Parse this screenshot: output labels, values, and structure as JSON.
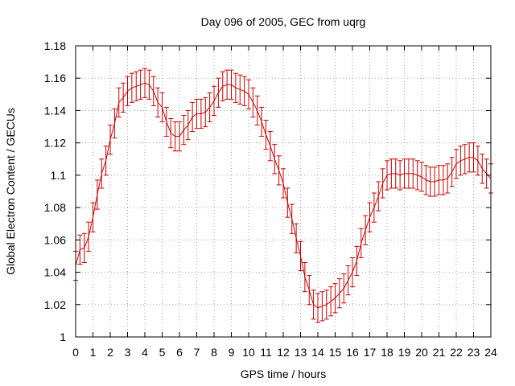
{
  "chart_data": {
    "type": "line",
    "title": "Day 096 of 2005, GEC from uqrg",
    "xlabel": "GPS time / hours",
    "ylabel": "Global Electron Content / GECUs",
    "xlim": [
      0,
      24
    ],
    "ylim": [
      1.0,
      1.18
    ],
    "grid": true,
    "x_ticks": [
      "0",
      "1",
      "2",
      "3",
      "4",
      "5",
      "6",
      "7",
      "8",
      "9",
      "10",
      "11",
      "12",
      "13",
      "14",
      "15",
      "16",
      "17",
      "18",
      "19",
      "20",
      "21",
      "22",
      "23",
      "24"
    ],
    "y_ticks": [
      "1",
      "1.02",
      "1.04",
      "1.06",
      "1.08",
      "1.1",
      "1.12",
      "1.14",
      "1.16",
      "1.18"
    ],
    "series": [
      {
        "color": "#cc0000",
        "x": [
          0,
          0.25,
          0.5,
          0.75,
          1,
          1.25,
          1.5,
          1.75,
          2,
          2.25,
          2.5,
          2.75,
          3,
          3.25,
          3.5,
          3.75,
          4,
          4.25,
          4.5,
          4.75,
          5,
          5.25,
          5.5,
          5.75,
          6,
          6.25,
          6.5,
          6.75,
          7,
          7.25,
          7.5,
          7.75,
          8,
          8.25,
          8.5,
          8.75,
          9,
          9.25,
          9.5,
          9.75,
          10,
          10.25,
          10.5,
          10.75,
          11,
          11.25,
          11.5,
          11.75,
          12,
          12.25,
          12.5,
          12.75,
          13,
          13.25,
          13.5,
          13.75,
          14,
          14.25,
          14.5,
          14.75,
          15,
          15.25,
          15.5,
          15.75,
          16,
          16.25,
          16.5,
          16.75,
          17,
          17.25,
          17.5,
          17.75,
          18,
          18.25,
          18.5,
          18.75,
          19,
          19.25,
          19.5,
          19.75,
          20,
          20.25,
          20.5,
          20.75,
          21,
          21.25,
          21.5,
          21.75,
          22,
          22.25,
          22.5,
          22.75,
          23,
          23.25,
          23.5,
          23.75,
          24
        ],
        "y": [
          1.044,
          1.054,
          1.055,
          1.062,
          1.074,
          1.088,
          1.101,
          1.109,
          1.122,
          1.132,
          1.145,
          1.148,
          1.152,
          1.154,
          1.155,
          1.156,
          1.157,
          1.156,
          1.152,
          1.145,
          1.142,
          1.133,
          1.126,
          1.124,
          1.124,
          1.128,
          1.131,
          1.136,
          1.138,
          1.138,
          1.139,
          1.142,
          1.146,
          1.151,
          1.155,
          1.156,
          1.156,
          1.154,
          1.153,
          1.152,
          1.15,
          1.145,
          1.14,
          1.133,
          1.125,
          1.118,
          1.11,
          1.103,
          1.095,
          1.083,
          1.073,
          1.061,
          1.05,
          1.037,
          1.029,
          1.02,
          1.018,
          1.019,
          1.02,
          1.022,
          1.024,
          1.027,
          1.03,
          1.035,
          1.04,
          1.047,
          1.058,
          1.066,
          1.074,
          1.08,
          1.087,
          1.095,
          1.1,
          1.101,
          1.101,
          1.1,
          1.101,
          1.101,
          1.101,
          1.1,
          1.099,
          1.097,
          1.096,
          1.096,
          1.097,
          1.097,
          1.098,
          1.102,
          1.107,
          1.109,
          1.11,
          1.111,
          1.111,
          1.109,
          1.104,
          1.101,
          1.098
        ],
        "err": 0.009
      }
    ]
  }
}
